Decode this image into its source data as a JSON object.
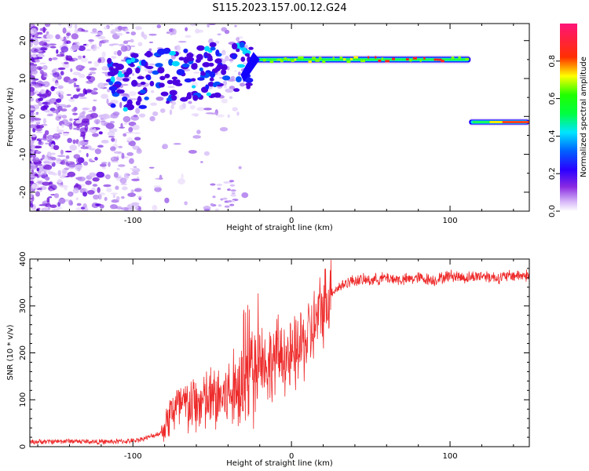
{
  "title": "S115.2023.157.00.12.G24",
  "chart_data": [
    {
      "type": "heatmap",
      "title": "S115.2023.157.00.12.G24",
      "xlabel": "Height of straight line (km)",
      "ylabel": "Frequency (Hz)",
      "xlim": [
        -165,
        150
      ],
      "ylim": [
        -25,
        24.5
      ],
      "xticks": [
        -100,
        0,
        100
      ],
      "yticks": [
        -20,
        -10,
        0,
        10,
        20
      ],
      "colorbar": {
        "label": "Normalized spectral amplitude",
        "range": [
          0.0,
          1.0
        ],
        "ticks": [
          0.0,
          0.2,
          0.4,
          0.6,
          0.8
        ],
        "colormap": [
          "#ffffff",
          "#c89cf0",
          "#6a00ff",
          "#0000ff",
          "#00e0ff",
          "#00ff60",
          "#ffff00",
          "#ff0000",
          "#ff1493"
        ]
      },
      "features": [
        {
          "region": "diffuse noise",
          "x_range": [
            -165,
            -25
          ],
          "y_range": [
            -25,
            24.5
          ],
          "amplitude": 0.1
        },
        {
          "region": "scattered bright blobs",
          "x_range": [
            -115,
            -25
          ],
          "y_range": [
            5,
            20
          ],
          "amplitude": 0.3
        },
        {
          "region": "main tone",
          "x_range": [
            -25,
            113
          ],
          "freq": 15,
          "amplitude": 0.8
        },
        {
          "region": "second tone",
          "x_range": [
            112,
            150
          ],
          "freq": -1.5,
          "amplitude": 0.8
        }
      ]
    },
    {
      "type": "line",
      "xlabel": "Height of straight line (km)",
      "ylabel": "SNR (10 * v/v)",
      "xlim": [
        -165,
        150
      ],
      "ylim": [
        0,
        400
      ],
      "xticks": [
        -100,
        0,
        100
      ],
      "yticks": [
        0,
        100,
        200,
        300,
        400
      ],
      "color": "#ee2a2a",
      "x": [
        -165,
        -140,
        -120,
        -100,
        -90,
        -82,
        -75,
        -60,
        -50,
        -40,
        -30,
        -22,
        -20,
        -15,
        -10,
        -5,
        0,
        5,
        10,
        15,
        20,
        25,
        30,
        35,
        40,
        50,
        60,
        70,
        80,
        90,
        100,
        110,
        120,
        130,
        140,
        150
      ],
      "y": [
        10,
        12,
        10,
        12,
        20,
        30,
        80,
        90,
        100,
        110,
        130,
        150,
        200,
        170,
        190,
        200,
        180,
        210,
        230,
        260,
        300,
        330,
        340,
        350,
        355,
        355,
        360,
        355,
        360,
        355,
        365,
        360,
        365,
        360,
        365,
        365
      ]
    }
  ]
}
